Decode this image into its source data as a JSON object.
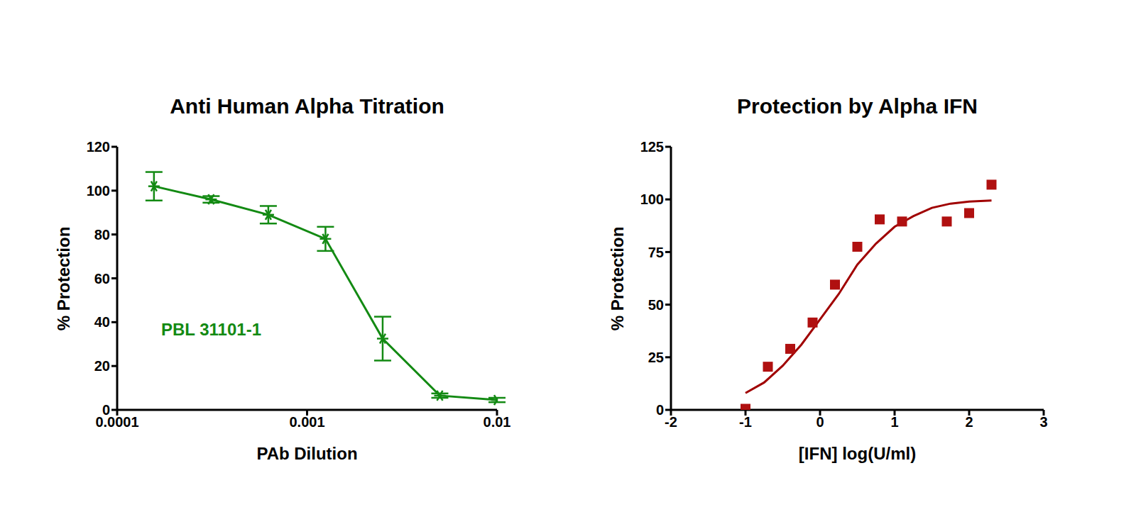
{
  "chart_data": [
    {
      "type": "line",
      "title": "Anti Human Alpha Titration",
      "x_label": "PAb Dilution",
      "y_label": "% Protection",
      "annotation": "PBL 31101-1",
      "x": [
        0.00015625,
        0.0003125,
        0.000625,
        0.00125,
        0.0025,
        0.005,
        0.01
      ],
      "values": [
        102,
        96,
        89,
        78,
        32.5,
        6.5,
        4.5
      ],
      "errors": [
        6.5,
        1.5,
        4,
        5.5,
        10,
        1,
        1
      ],
      "color": "#138a13",
      "marker": "star",
      "log": "x",
      "xlim": [
        0.0001,
        0.01
      ],
      "xticks": [
        0.0001,
        0.001,
        0.01
      ],
      "ylim": [
        0,
        120
      ],
      "yticks": [
        0,
        20,
        40,
        60,
        80,
        100,
        120
      ],
      "grid": false
    },
    {
      "type": "scatter",
      "title": "Protection by Alpha IFN",
      "x_label": "[IFN] log(U/ml)",
      "y_label": "% Protection",
      "series": [
        {
          "type": "scatter",
          "color": "#b01010",
          "marker": "square",
          "x": [
            -1,
            -0.7,
            -0.4,
            -0.1,
            0.2,
            0.5,
            0.8,
            1.1,
            1.7,
            2.0,
            2.3
          ],
          "values": [
            0.5,
            20.5,
            29,
            41.5,
            59.5,
            77.5,
            90.5,
            89.5,
            89.5,
            93.5,
            107
          ]
        },
        {
          "type": "line",
          "color": "#a00000",
          "x": [
            -1,
            -0.75,
            -0.5,
            -0.25,
            0,
            0.25,
            0.5,
            0.75,
            1,
            1.25,
            1.5,
            1.75,
            2,
            2.3
          ],
          "values": [
            8,
            13,
            21,
            31,
            43,
            55,
            69,
            79,
            87,
            92,
            96,
            98,
            99,
            99.5
          ]
        }
      ],
      "xlim": [
        -2,
        3
      ],
      "xticks": [
        -2,
        -1,
        0,
        1,
        2,
        3
      ],
      "ylim": [
        0,
        125
      ],
      "yticks": [
        0,
        25,
        50,
        75,
        100,
        125
      ],
      "grid": false
    }
  ]
}
